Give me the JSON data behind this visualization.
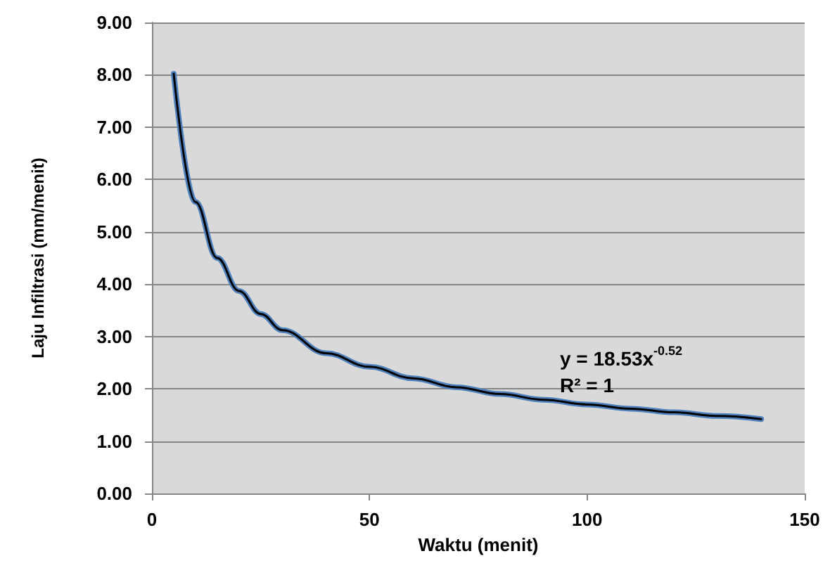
{
  "chart_data": {
    "type": "line",
    "xlabel": "Waktu (menit)",
    "ylabel": "Laju Infiltrasi (mm/menit)",
    "x": [
      5,
      10,
      15,
      20,
      25,
      30,
      40,
      50,
      60,
      70,
      80,
      90,
      100,
      110,
      120,
      130,
      140
    ],
    "series": [
      {
        "color": "#4f81bd",
        "values": [
          8.02,
          5.57,
          4.5,
          3.87,
          3.43,
          3.12,
          2.68,
          2.42,
          2.2,
          2.03,
          1.9,
          1.79,
          1.7,
          1.62,
          1.55,
          1.48,
          1.42
        ]
      },
      {
        "color": "#000000",
        "x": [
          5,
          10,
          15,
          20,
          25,
          30,
          40,
          50,
          60,
          70,
          80,
          90,
          100,
          110,
          120,
          130,
          140
        ],
        "values": [
          8.02,
          5.57,
          4.5,
          3.87,
          3.43,
          3.12,
          2.68,
          2.42,
          2.2,
          2.03,
          1.9,
          1.79,
          1.7,
          1.62,
          1.55,
          1.48,
          1.42
        ]
      }
    ],
    "xlim": [
      0,
      150
    ],
    "xticks": [
      0,
      50,
      100,
      150
    ],
    "ylim": [
      0,
      9
    ],
    "yticks": [
      {
        "value": 0,
        "label": "0.00"
      },
      {
        "value": 1,
        "label": "1.00"
      },
      {
        "value": 2,
        "label": "2.00"
      },
      {
        "value": 3,
        "label": "3.00"
      },
      {
        "value": 4,
        "label": "4.00"
      },
      {
        "value": 5,
        "label": "5.00"
      },
      {
        "value": 6,
        "label": "6.00"
      },
      {
        "value": 7,
        "label": "7.00"
      },
      {
        "value": 8,
        "label": "8.00"
      },
      {
        "value": 9,
        "label": "9.00"
      }
    ],
    "annotations": [
      "y = 18.53x$^{-0.52}$",
      "R² = 1"
    ],
    "grid": "y",
    "marker": "none",
    "line_style": "solid"
  }
}
